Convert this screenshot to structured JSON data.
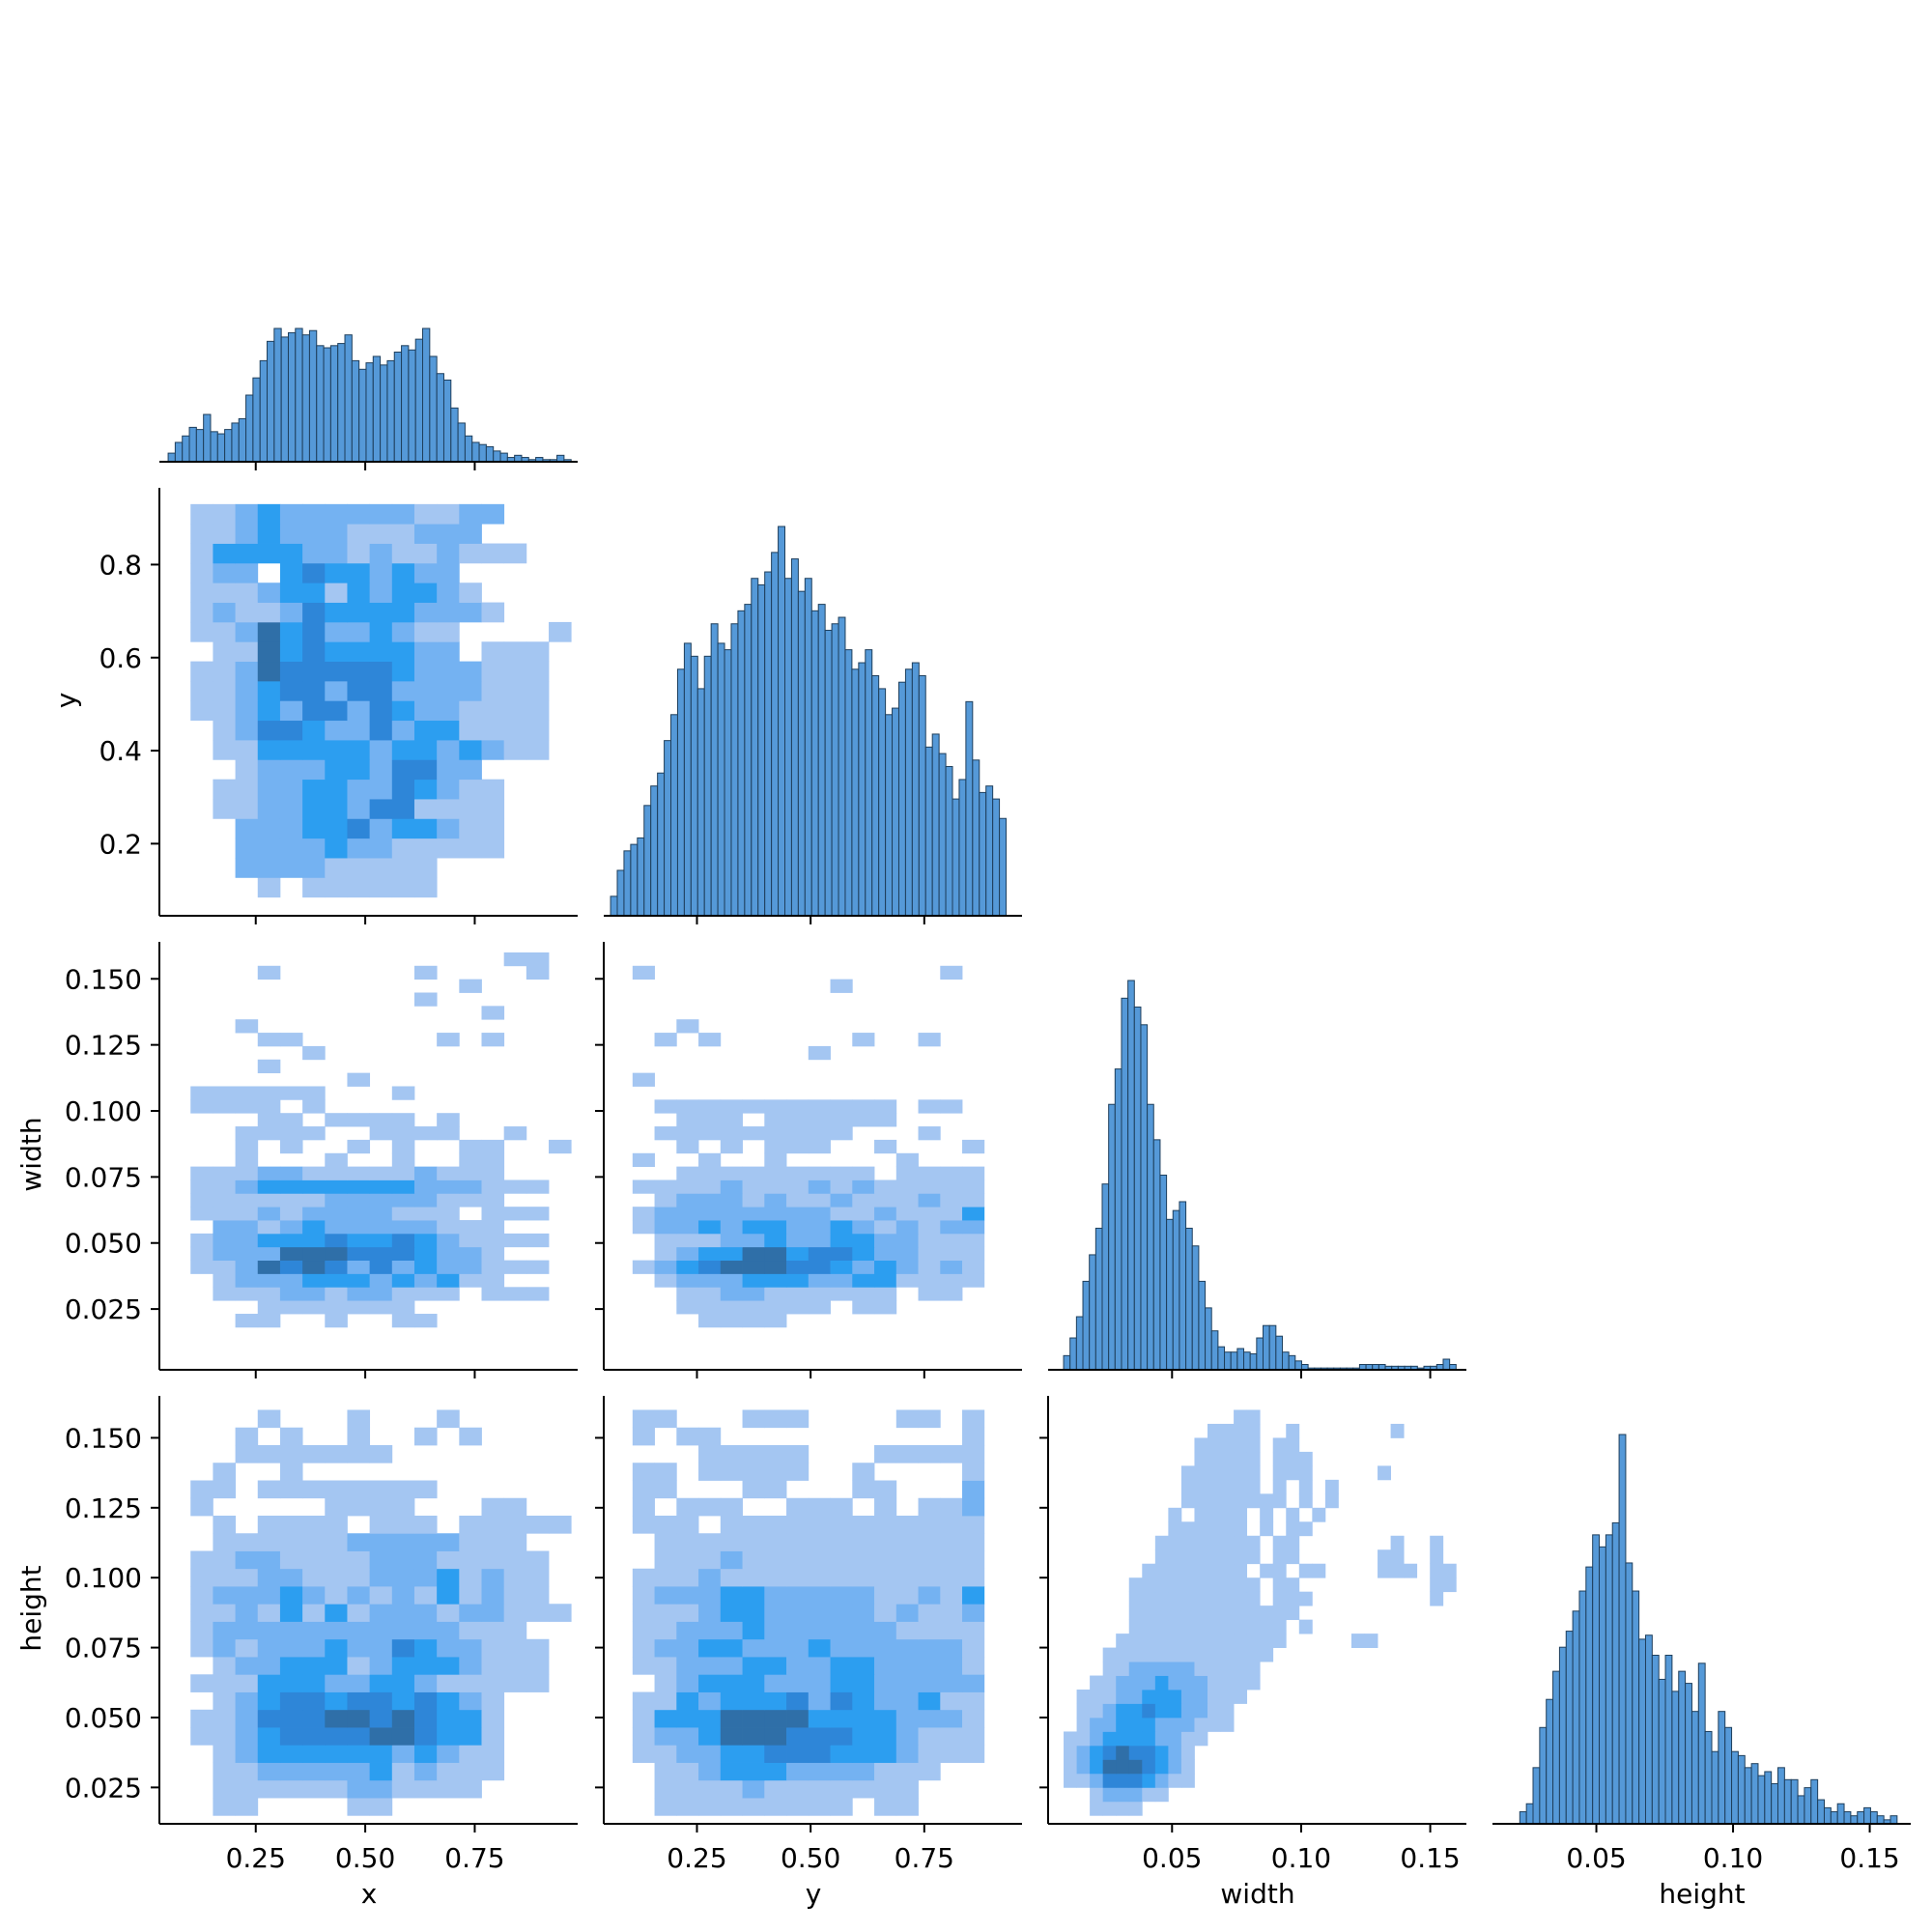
{
  "chart_data": {
    "type": "pairplot",
    "variables": [
      "x",
      "y",
      "width",
      "height"
    ],
    "style": {
      "hist_color": "#4c93d6",
      "hist_edge": "#1f3f5c",
      "cmap": [
        "#a4c6f2",
        "#74b2f2",
        "#2c9ef0",
        "#2e86d8",
        "#2f6fa8",
        "#374a64"
      ]
    },
    "axes": {
      "x": {
        "range": [
          0.03,
          0.985
        ],
        "ticks": [
          0.25,
          0.5,
          0.75
        ],
        "tick_labels": [
          "0.25",
          "0.50",
          "0.75"
        ]
      },
      "y": {
        "range": [
          0.045,
          0.965
        ],
        "ticks": [
          0.2,
          0.4,
          0.6,
          0.8
        ],
        "tick_labels": [
          "0.2",
          "0.4",
          "0.6",
          "0.8"
        ],
        "col_tick_labels": [
          "0.25",
          "0.50",
          "0.75"
        ],
        "col_ticks": [
          0.25,
          0.5,
          0.75
        ]
      },
      "width": {
        "range": [
          0.002,
          0.164
        ],
        "ticks": [
          0.025,
          0.05,
          0.075,
          0.1,
          0.125,
          0.15
        ],
        "tick_labels": [
          "0.025",
          "0.050",
          "0.075",
          "0.100",
          "0.125",
          "0.150"
        ],
        "col_ticks": [
          0.05,
          0.1,
          0.15
        ],
        "col_tick_labels": [
          "0.05",
          "0.10",
          "0.15"
        ]
      },
      "height": {
        "range": [
          0.012,
          0.165
        ],
        "ticks": [
          0.025,
          0.05,
          0.075,
          0.1,
          0.125,
          0.15
        ],
        "tick_labels": [
          "0.025",
          "0.050",
          "0.075",
          "0.100",
          "0.125",
          "0.150"
        ],
        "col_ticks": [
          0.05,
          0.1,
          0.15
        ],
        "col_tick_labels": [
          "0.05",
          "0.10",
          "0.15"
        ]
      }
    },
    "diagonal_histograms": [
      {
        "variable": "x",
        "x_min": 0.05,
        "x_max": 0.97,
        "values": [
          4,
          9,
          12,
          16,
          15,
          22,
          14,
          13,
          15,
          18,
          20,
          31,
          39,
          47,
          56,
          62,
          58,
          60,
          62,
          59,
          61,
          54,
          53,
          54,
          55,
          59,
          47,
          43,
          46,
          49,
          45,
          47,
          51,
          54,
          52,
          57,
          62,
          49,
          41,
          38,
          25,
          18,
          12,
          9,
          8,
          7,
          5,
          4,
          2,
          3,
          2,
          1,
          2,
          1,
          1,
          3,
          1
        ]
      },
      {
        "variable": "y",
        "x_min": 0.06,
        "x_max": 0.93,
        "values": [
          3,
          7,
          10,
          11,
          12,
          17,
          20,
          22,
          27,
          31,
          38,
          42,
          40,
          35,
          40,
          45,
          42,
          41,
          45,
          47,
          48,
          52,
          51,
          53,
          56,
          60,
          52,
          55,
          50,
          52,
          47,
          48,
          44,
          45,
          46,
          41,
          38,
          39,
          41,
          37,
          35,
          31,
          32,
          36,
          38,
          39,
          37,
          26,
          28,
          25,
          23,
          18,
          21,
          33,
          24,
          19,
          20,
          18,
          15
        ]
      },
      {
        "variable": "width",
        "x_min": 0.008,
        "x_max": 0.16,
        "values": [
          8,
          18,
          30,
          50,
          65,
          80,
          105,
          150,
          170,
          210,
          220,
          205,
          195,
          150,
          130,
          110,
          85,
          90,
          95,
          80,
          70,
          50,
          35,
          22,
          13,
          10,
          10,
          12,
          10,
          9,
          18,
          25,
          25,
          19,
          10,
          8,
          5,
          3,
          1,
          1,
          1,
          1,
          1,
          1,
          1,
          1,
          3,
          3,
          3,
          3,
          2,
          2,
          2,
          2,
          2,
          1,
          2,
          2,
          3,
          6,
          3
        ]
      },
      {
        "variable": "height",
        "x_min": 0.022,
        "x_max": 0.16,
        "values": [
          3,
          5,
          14,
          24,
          31,
          38,
          44,
          48,
          53,
          58,
          64,
          72,
          69,
          72,
          75,
          97,
          65,
          58,
          46,
          47,
          42,
          36,
          42,
          33,
          38,
          35,
          28,
          40,
          23,
          18,
          28,
          24,
          18,
          17,
          14,
          15,
          12,
          13,
          10,
          14,
          11,
          11,
          7,
          9,
          11,
          6,
          4,
          3,
          5,
          3,
          2,
          3,
          4,
          3,
          2,
          1,
          2
        ]
      }
    ],
    "pairwise_heatmaps": [
      {
        "x": "x",
        "y": "y",
        "x_min": 0.05,
        "x_max": 0.97,
        "y_min": 0.085,
        "y_max": 0.93,
        "nx": 18,
        "ny": 20,
        "levels_by_row_from_bottom": [
          "000010111111000000",
          "000222211111000000",
          "000222232211111000",
          "000222334233211000",
          "001122332441111000",
          "001122332243211000",
          "000122233244220000",
          "001133333233232110",
          "001244322423311110",
          "011232442432211110",
          "011234424422221110",
          "011254444432221110",
          "001153433332201110",
          "011253422321100001",
          "012112433332221000",
          "011123313233210000",
          "012203433232200000",
          "013333221211211100",
          "011232221112220000",
          "011232222221122000"
        ]
      },
      {
        "x": "x",
        "y": "width",
        "x_min": 0.05,
        "x_max": 0.97,
        "y_min": 0.008,
        "y_max": 0.16,
        "nx": 18,
        "ny": 30,
        "levels_by_row_from_bottom": [
          "000000000000000000",
          "000000000000000000",
          "000110010011000000",
          "000011111110000000",
          "001112212211101110",
          "001222333232311000",
          "011254542423221110",
          "012225554443221000",
          "012233343343211110",
          "002212322222111000",
          "011121222211101110",
          "011111122222111000",
          "011233333332221110",
          "011122111112111000",
          "000100010010011000",
          "000101001010011001",
          "000111100111100100",
          "000011011110100000",
          "011110100000000000",
          "011111100010000000",
          "000000001000000000",
          "000010000000000000",
          "000000100000000000",
          "000011000000101000",
          "000100000000000000",
          "000000000000001000",
          "000000000001000000",
          "000000000000010000",
          "000010000001000010",
          "000000000000000110"
        ]
      },
      {
        "x": "y",
        "y": "width",
        "x_min": 0.06,
        "x_max": 0.93,
        "y_min": 0.008,
        "y_max": 0.16,
        "nx": 18,
        "ny": 30,
        "levels_by_row_from_bottom": [
          "000000000000000000",
          "000000000000000000",
          "000011110000000000",
          "000111111101100000",
          "000112211111101100",
          "001222333223311110",
          "012345554432321210",
          "001233553443221110",
          "001112232233221110",
          "012232332232121220",
          "012222222211211130",
          "001222121121112110",
          "011112111212111110",
          "000111111111011110",
          "010010010000010000",
          "000101011100100010",
          "001111111110001000",
          "000111011111100000",
          "001111111111101100",
          "000000000000000000",
          "010000000000000000",
          "000000000000000000",
          "000000000100000000",
          "001010000001001000",
          "000100000000000000",
          "000000000000000000",
          "000000000000000000",
          "000000000010000000",
          "010000000000000100",
          "000000000000000000"
        ]
      },
      {
        "x": "x",
        "y": "height",
        "x_min": 0.05,
        "x_max": 0.97,
        "y_min": 0.015,
        "y_max": 0.16,
        "nx": 18,
        "ny": 23,
        "levels_by_row_from_bottom": [
          "001100001100000000",
          "001111112211110000",
          "001122222312111000",
          "001233333323211000",
          "011234444554331000",
          "011244455454331000",
          "001234434434321000",
          "011133322332111110",
          "001223331233321110",
          "012122232243221110",
          "012222222222211100",
          "011213131222122111",
          "012223212121312110",
          "011122111222312110",
          "011221111222111110",
          "001111112222211100",
          "001011110111011111",
          "010000011110001100",
          "011011111111000000",
          "001001000000000000",
          "000111111100000000",
          "000101001001010000",
          "000010001000100000"
        ]
      },
      {
        "x": "y",
        "y": "height",
        "x_min": 0.06,
        "x_max": 0.93,
        "y_min": 0.015,
        "y_max": 0.16,
        "nx": 18,
        "ny": 23,
        "levels_by_row_from_bottom": [
          "001111111110110000",
          "001111211111110000",
          "001123332222111000",
          "011223344433321110",
          "012235554443321110",
          "013335555333322210",
          "011323334243223110",
          "001233322233222220",
          "011222332233222210",
          "012233222322222210",
          "011222322222211110",
          "011123322222121120",
          "012223322222112130",
          "011121111111111110",
          "001112111111111110",
          "001111111111111110",
          "011101111111111110",
          "010111001110101120",
          "011000110001100020",
          "011011111001000010",
          "000011111000111110",
          "010110000000000010",
          "011000111000011010"
        ]
      },
      {
        "x": "width",
        "y": "height",
        "x_min": 0.008,
        "x_max": 0.16,
        "y_min": 0.015,
        "y_max": 0.16,
        "nx": 30,
        "ny": 29,
        "levels_by_row_from_bottom": [
          "001111000000000000000000000000",
          "001222110000000000000000000000",
          "112444321100000000000000000000",
          "123555432100000000000000000000",
          "123454432100000000000000000000",
          "112333322110000000000000000000",
          "012233322211100000000000000000",
          "011233433221100000000000000000",
          "011122333221110000000000000000",
          "001122232221111000000000000000",
          "000112222211111000000000000000",
          "000111111111111100000000000000",
          "000011111111111110000011000000",
          "000001111111111110100000000000",
          "000001111111111111000000000000",
          "000001111111111011100000000010",
          "000001111111111011000000000011",
          "000000111111110110110000111011",
          "000000011111111011000000110010",
          "000000011111111011000000010010",
          "000000001111110101100000000000",
          "000000001011110101010000000000",
          "000000000111111110101000000000",
          "000000000111111010101000000000",
          "000000000111111011100000100000",
          "000000000011111011100000000000",
          "000000000011111011000000000000",
          "000000000001111001000000010000",
          "000000000000011000000000000000"
        ]
      }
    ]
  }
}
